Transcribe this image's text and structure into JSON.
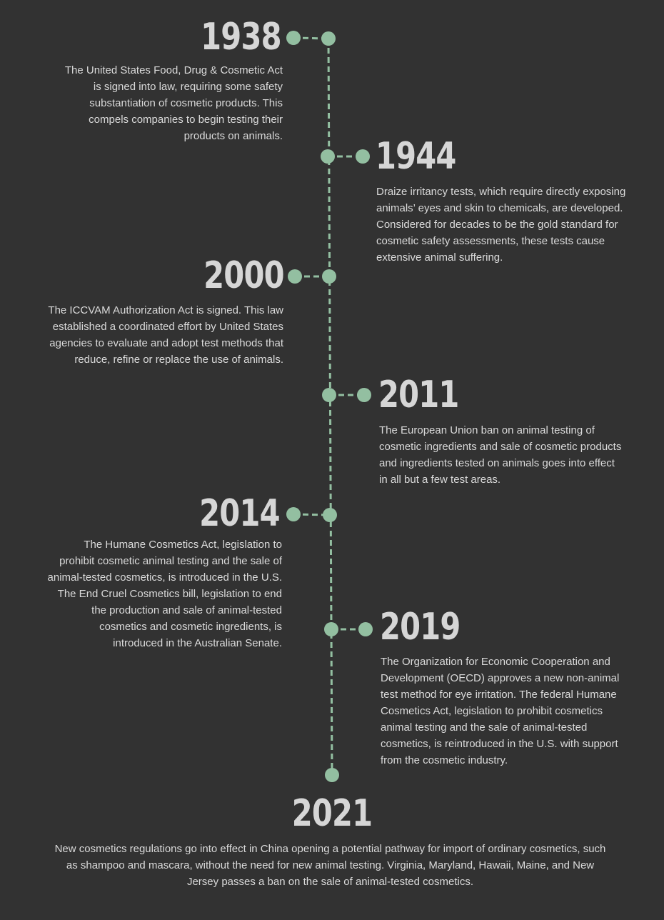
{
  "colors": {
    "background": "#323232",
    "accent": "#93bfa1",
    "text": "#dadada"
  },
  "events": [
    {
      "year": "1938",
      "side": "left",
      "text": "The United States Food, Drug & Cosmetic Act is signed into law, requiring some safety substantiation of cosmetic products. This compels companies to begin testing their products on animals."
    },
    {
      "year": "1944",
      "side": "right",
      "text": "Draize irritancy tests, which require directly exposing animals’ eyes and skin to chemicals, are developed. Considered for decades to be the gold standard for cosmetic safety assessments, these tests cause extensive animal suffering."
    },
    {
      "year": "2000",
      "side": "left",
      "text": "The ICCVAM Authorization Act is signed. This law established a coordinated effort by United States agencies to evaluate and adopt test methods that reduce, refine or replace the use of animals."
    },
    {
      "year": "2011",
      "side": "right",
      "text": "The European Union ban on animal testing of cosmetic ingredients and sale of cosmetic products and ingredients tested on animals goes into effect in all but a few test areas."
    },
    {
      "year": "2014",
      "side": "left",
      "text": "The Humane Cosmetics Act, legislation to prohibit cosmetic animal testing and the sale of animal-tested cosmetics, is introduced in the U.S. The End Cruel Cosmetics bill, legislation to end the production and sale of animal-tested cosmetics and cosmetic ingredients, is introduced in the Australian Senate."
    },
    {
      "year": "2019",
      "side": "right",
      "text": "The Organization for Economic Cooperation and Development (OECD) approves a new non-animal test method for eye irritation. The federal Humane Cosmetics Act, legislation to prohibit cosmetics animal testing and the sale of animal-tested cosmetics, is reintroduced in the U.S. with support from the cosmetic industry."
    },
    {
      "year": "2021",
      "side": "center",
      "text": "New cosmetics regulations go into effect in China opening a potential pathway for import of ordinary cosmetics, such as shampoo and mascara, without the need for new animal testing. Virginia, Maryland, Hawaii, Maine, and New Jersey passes a ban on the sale of animal-tested cosmetics."
    }
  ]
}
